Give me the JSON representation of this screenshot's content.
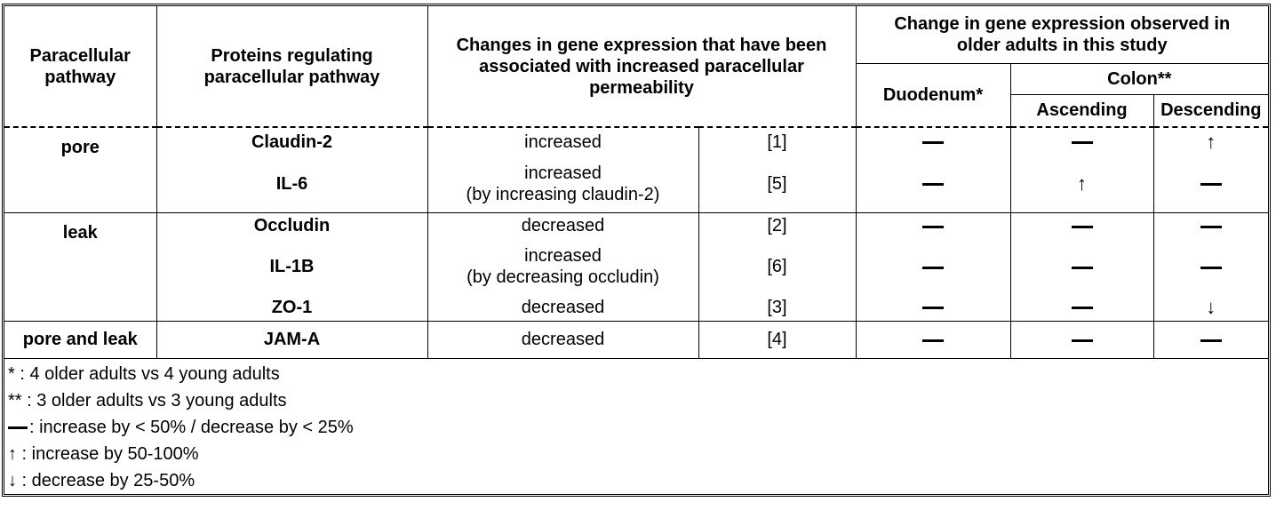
{
  "header": {
    "paracellular_pathway": "Paracellular pathway",
    "proteins": "Proteins regulating paracellular pathway",
    "changes": "Changes in gene expression that have been associated with increased paracellular permeability",
    "observed": "Change in gene expression observed in older adults in this study",
    "duodenum": "Duodenum*",
    "colon": "Colon**",
    "ascending": "Ascending",
    "descending": "Descending"
  },
  "groups": [
    {
      "pathway": "pore"
    },
    {
      "pathway": "leak"
    },
    {
      "pathway": "pore and leak"
    }
  ],
  "rows": [
    {
      "protein": "Claudin-2",
      "change": "increased",
      "change_note": "",
      "ref": "[1]",
      "duodenum": "dash",
      "ascending": "dash",
      "descending": "↑"
    },
    {
      "protein": "IL-6",
      "change": "increased",
      "change_note": "(by increasing claudin-2)",
      "ref": "[5]",
      "duodenum": "dash",
      "ascending": "↑",
      "descending": "dash"
    },
    {
      "protein": "Occludin",
      "change": "decreased",
      "change_note": "",
      "ref": "[2]",
      "duodenum": "dash",
      "ascending": "dash",
      "descending": "dash"
    },
    {
      "protein": "IL-1B",
      "change": "increased",
      "change_note": "(by decreasing occludin)",
      "ref": "[6]",
      "duodenum": "dash",
      "ascending": "dash",
      "descending": "dash"
    },
    {
      "protein": "ZO-1",
      "change": "decreased",
      "change_note": "",
      "ref": "[3]",
      "duodenum": "dash",
      "ascending": "dash",
      "descending": "↓"
    },
    {
      "protein": "JAM-A",
      "change": "decreased",
      "change_note": "",
      "ref": "[4]",
      "duodenum": "dash",
      "ascending": "dash",
      "descending": "dash"
    }
  ],
  "footnotes": {
    "star1": "*   : 4 older adults vs 4 young adults",
    "star2": "**  : 3 older adults vs 3 young adults",
    "dash": ": increase by  < 50% / decrease by < 25%",
    "up": "↑  : increase by 50-100%",
    "down": "↓  : decrease by 25-50%"
  }
}
